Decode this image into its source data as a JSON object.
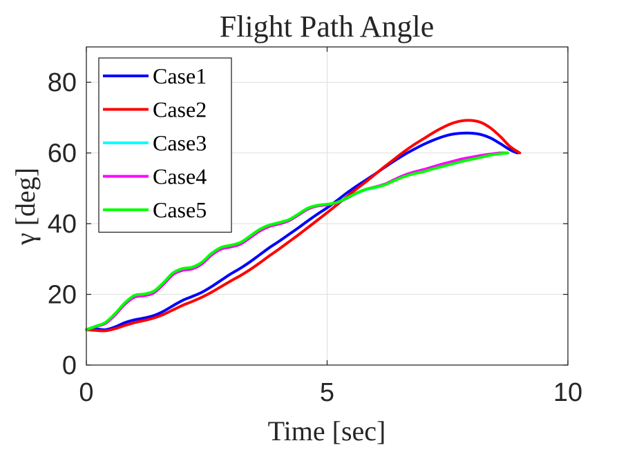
{
  "chart_data": {
    "type": "line",
    "title": "Flight Path Angle",
    "xlabel": "Time [sec]",
    "ylabel": "γ [deg]",
    "xlim": [
      0,
      10
    ],
    "ylim": [
      0,
      90
    ],
    "xticks": [
      0,
      5,
      10
    ],
    "yticks": [
      0,
      20,
      40,
      60,
      80
    ],
    "xtick_labels": [
      "0",
      "5",
      "10"
    ],
    "ytick_labels": [
      "0",
      "20",
      "40",
      "60",
      "80"
    ],
    "grid": true,
    "legend_position": "top-left",
    "series": [
      {
        "name": "Case1",
        "color": "#0000ff",
        "x": [
          0,
          0.2,
          0.4,
          0.6,
          0.8,
          1.0,
          1.2,
          1.4,
          1.6,
          1.8,
          2.0,
          2.2,
          2.4,
          2.6,
          2.8,
          3.0,
          3.2,
          3.4,
          3.6,
          3.8,
          4.0,
          4.2,
          4.4,
          4.6,
          4.8,
          5.0,
          5.2,
          5.4,
          5.6,
          5.8,
          6.0,
          6.2,
          6.4,
          6.6,
          6.8,
          7.0,
          7.2,
          7.4,
          7.6,
          7.8,
          8.0,
          8.2,
          8.4,
          8.6,
          8.8,
          8.95
        ],
        "y": [
          10,
          10.2,
          10.0,
          10.8,
          12.0,
          12.8,
          13.3,
          14.0,
          15.2,
          16.8,
          18.3,
          19.4,
          20.6,
          22.2,
          24.0,
          25.8,
          27.4,
          29.2,
          31.2,
          33.2,
          35.0,
          36.9,
          38.8,
          40.8,
          42.7,
          44.5,
          46.5,
          48.6,
          50.5,
          52.3,
          54.1,
          56.0,
          57.8,
          59.5,
          61.0,
          62.4,
          63.6,
          64.6,
          65.3,
          65.6,
          65.6,
          65.2,
          64.2,
          62.6,
          60.9,
          60.0
        ]
      },
      {
        "name": "Case2",
        "color": "#ff0000",
        "x": [
          0,
          0.2,
          0.4,
          0.6,
          0.8,
          1.0,
          1.2,
          1.4,
          1.6,
          1.8,
          2.0,
          2.2,
          2.4,
          2.6,
          2.8,
          3.0,
          3.2,
          3.4,
          3.6,
          3.8,
          4.0,
          4.2,
          4.4,
          4.6,
          4.8,
          5.0,
          5.2,
          5.4,
          5.6,
          5.8,
          6.0,
          6.2,
          6.4,
          6.6,
          6.8,
          7.0,
          7.2,
          7.4,
          7.6,
          7.8,
          8.0,
          8.2,
          8.4,
          8.6,
          8.8,
          9.0
        ],
        "y": [
          10,
          9.8,
          9.7,
          10.3,
          11.2,
          12.0,
          12.6,
          13.3,
          14.3,
          15.6,
          16.9,
          18.0,
          19.2,
          20.6,
          22.2,
          23.8,
          25.3,
          27.0,
          28.9,
          30.9,
          32.8,
          34.8,
          36.8,
          38.9,
          41.0,
          43.1,
          45.3,
          47.5,
          49.7,
          51.8,
          54.0,
          56.2,
          58.3,
          60.4,
          62.3,
          64.0,
          65.7,
          67.2,
          68.4,
          69.1,
          69.2,
          68.6,
          67.0,
          64.6,
          61.8,
          60.0
        ]
      },
      {
        "name": "Case3",
        "color": "#00ffff",
        "x": [
          0,
          0.2,
          0.4,
          0.6,
          0.8,
          1.0,
          1.2,
          1.4,
          1.6,
          1.8,
          2.0,
          2.2,
          2.4,
          2.6,
          2.8,
          3.0,
          3.2,
          3.4,
          3.6,
          3.8,
          4.0,
          4.2,
          4.4,
          4.6,
          4.8,
          5.0,
          5.2,
          5.4,
          5.6,
          5.8,
          6.0,
          6.2,
          6.4,
          6.6,
          6.8,
          7.0,
          7.2,
          7.4,
          7.6,
          7.8,
          8.0,
          8.2,
          8.4,
          8.6,
          8.75
        ],
        "y": [
          10,
          11.0,
          12.0,
          14.5,
          17.5,
          19.6,
          20.0,
          20.8,
          23.2,
          26.0,
          27.2,
          27.6,
          29.0,
          31.5,
          33.2,
          33.8,
          34.6,
          36.4,
          38.3,
          39.5,
          40.2,
          41.0,
          42.6,
          44.3,
          45.1,
          45.4,
          45.9,
          47.1,
          48.5,
          49.6,
          50.2,
          51.0,
          52.3,
          53.4,
          54.3,
          54.9,
          55.7,
          56.4,
          57.1,
          57.8,
          58.3,
          58.8,
          59.4,
          59.8,
          60.0
        ]
      },
      {
        "name": "Case4",
        "color": "#ff00ff",
        "x": [
          0,
          0.2,
          0.4,
          0.6,
          0.8,
          1.0,
          1.2,
          1.4,
          1.6,
          1.8,
          2.0,
          2.2,
          2.4,
          2.6,
          2.8,
          3.0,
          3.2,
          3.4,
          3.6,
          3.8,
          4.0,
          4.2,
          4.4,
          4.6,
          4.8,
          5.0,
          5.2,
          5.4,
          5.6,
          5.8,
          6.0,
          6.2,
          6.4,
          6.6,
          6.8,
          7.0,
          7.2,
          7.4,
          7.6,
          7.8,
          8.0,
          8.2,
          8.4,
          8.6,
          8.75
        ],
        "y": [
          10,
          10.9,
          11.8,
          14.2,
          17.2,
          19.2,
          19.6,
          20.4,
          22.8,
          25.6,
          26.8,
          27.2,
          28.6,
          31.1,
          32.8,
          33.4,
          34.2,
          36.0,
          37.9,
          39.2,
          39.9,
          40.8,
          42.4,
          44.1,
          45.0,
          45.3,
          45.9,
          47.1,
          48.6,
          49.7,
          50.4,
          51.2,
          52.5,
          53.7,
          54.6,
          55.3,
          56.1,
          56.9,
          57.6,
          58.3,
          58.8,
          59.3,
          59.7,
          60.0,
          60.0
        ]
      },
      {
        "name": "Case5",
        "color": "#00ff00",
        "x": [
          0,
          0.2,
          0.4,
          0.6,
          0.8,
          1.0,
          1.2,
          1.4,
          1.6,
          1.8,
          2.0,
          2.2,
          2.4,
          2.6,
          2.8,
          3.0,
          3.2,
          3.4,
          3.6,
          3.8,
          4.0,
          4.2,
          4.4,
          4.6,
          4.8,
          5.0,
          5.2,
          5.4,
          5.6,
          5.8,
          6.0,
          6.2,
          6.4,
          6.6,
          6.8,
          7.0,
          7.2,
          7.4,
          7.6,
          7.8,
          8.0,
          8.2,
          8.4,
          8.6,
          8.75
        ],
        "y": [
          10,
          11.0,
          12.1,
          14.6,
          17.6,
          19.7,
          20.1,
          20.9,
          23.3,
          26.1,
          27.3,
          27.7,
          29.1,
          31.6,
          33.3,
          33.9,
          34.7,
          36.5,
          38.4,
          39.6,
          40.3,
          41.1,
          42.7,
          44.4,
          45.2,
          45.5,
          46.0,
          47.2,
          48.6,
          49.7,
          50.3,
          51.0,
          52.2,
          53.3,
          54.1,
          54.7,
          55.5,
          56.2,
          56.9,
          57.6,
          58.2,
          58.8,
          59.4,
          59.8,
          60.0
        ]
      }
    ]
  }
}
